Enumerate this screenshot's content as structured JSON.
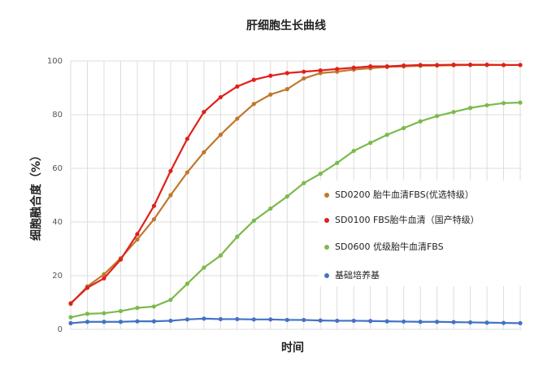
{
  "chart_data": {
    "type": "line",
    "title": "肝细胞生长曲线",
    "x_label": "时间",
    "y_label": "细胞融合度（%）",
    "categories": [
      null,
      null,
      null,
      null,
      null,
      null,
      null,
      null,
      null,
      null,
      null,
      null,
      null,
      null,
      null,
      null,
      null,
      null,
      null,
      null,
      null,
      null,
      null,
      null,
      null,
      null,
      null,
      null
    ],
    "ylim": [
      0,
      100
    ],
    "yticks": [
      0,
      20,
      40,
      60,
      80,
      100
    ],
    "grid": true,
    "legend": "right",
    "series": [
      {
        "name": "SD0200 胎牛血清FBS(优选特级）",
        "color": "#c0772c",
        "values": [
          9.5,
          16,
          20.5,
          26.5,
          33.5,
          41,
          50,
          58.5,
          66,
          72.5,
          78.5,
          84,
          87.5,
          89.5,
          93.5,
          95.5,
          96,
          96.8,
          97.3,
          97.8,
          98,
          98.2,
          98.3,
          98.4,
          98.5,
          98.5,
          98.5,
          98.5
        ]
      },
      {
        "name": "SD0100 FBS胎牛血清（国产特级）",
        "color": "#e0201b",
        "values": [
          9.7,
          15.5,
          19,
          26,
          35.5,
          46,
          59,
          71,
          81,
          86.5,
          90.5,
          93,
          94.5,
          95.5,
          96,
          96.5,
          97,
          97.5,
          98,
          98,
          98.3,
          98.5,
          98.5,
          98.6,
          98.6,
          98.6,
          98.5,
          98.5
        ]
      },
      {
        "name": "SD0600 优级胎牛血清FBS",
        "color": "#7cba4c",
        "values": [
          4.5,
          5.8,
          6,
          6.8,
          8,
          8.5,
          11,
          17,
          23,
          27.5,
          34.5,
          40.5,
          45,
          49.5,
          54.5,
          58,
          62,
          66.5,
          69.5,
          72.5,
          75,
          77.5,
          79.5,
          81,
          82.5,
          83.5,
          84.3,
          84.5
        ]
      },
      {
        "name": "基础培养基",
        "color": "#4472c4",
        "values": [
          2.3,
          2.8,
          2.8,
          2.8,
          3,
          3,
          3.2,
          3.7,
          4,
          3.8,
          3.8,
          3.7,
          3.7,
          3.5,
          3.5,
          3.3,
          3.2,
          3.2,
          3.1,
          3,
          2.9,
          2.8,
          2.8,
          2.7,
          2.6,
          2.5,
          2.4,
          2.3
        ]
      }
    ]
  }
}
